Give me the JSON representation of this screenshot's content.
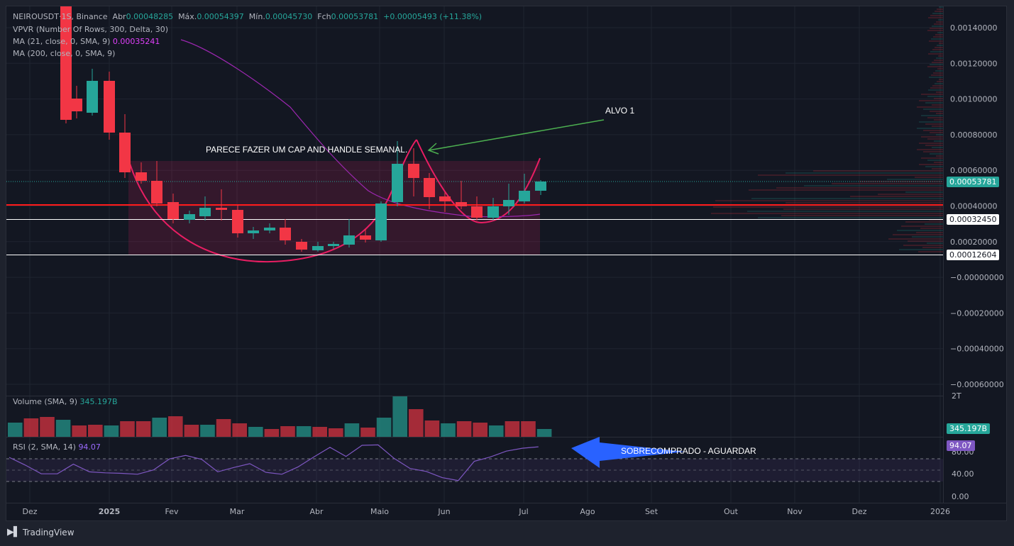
{
  "legend": {
    "symbol": "NEIROUSDT",
    "interval_suffix": "1S",
    "exchange": "Binance",
    "open_label": "Abr",
    "open": "0.00048285",
    "high_label": "Máx.",
    "high": "0.00054397",
    "low_label": "Mín.",
    "low": "0.00045730",
    "close_label": "Fch",
    "close": "0.00053781",
    "change": "+0.00005493 (+11.38%)",
    "vpvr": "VPVR (Number Of Rows, 300, Delta, 30)",
    "ma21_label": "MA (21, close, 0, SMA, 9)",
    "ma21_value": "0.00035241",
    "ma200_label": "MA (200, close, 0, SMA, 9)"
  },
  "price_axis": [
    "0.00140000",
    "0.00120000",
    "0.00100000",
    "0.00080000",
    "0.00060000",
    "0.00040000",
    "0.00020000",
    "−0.00000000",
    "−0.00020000",
    "−0.00040000",
    "−0.00060000"
  ],
  "price_tags": {
    "last": "0.00053781",
    "support_1": "0.00032450",
    "support_2": "0.00012604"
  },
  "time_axis": [
    "Dez",
    "2025",
    "Fev",
    "Mar",
    "Abr",
    "Maio",
    "Jun",
    "Jul",
    "Ago",
    "Set",
    "Out",
    "Nov",
    "Dez",
    "2026"
  ],
  "annotations": {
    "pattern": "PARECE FAZER UM CAP AND HANDLE SEMANAL.",
    "target": "ALVO 1",
    "rsi_note": "SOBRECOMPRADO - AGUARDAR"
  },
  "volume": {
    "label": "Volume (SMA, 9)",
    "value": "345.197B",
    "axis_top": "2T"
  },
  "rsi": {
    "label": "RSI (2, SMA, 14)",
    "value": "94.07",
    "axis": [
      "80.00",
      "40.00",
      "0.00"
    ],
    "levels": [
      70,
      30
    ]
  },
  "footer": {
    "brand": "TradingView"
  },
  "colors": {
    "up": "#26a69a",
    "down": "#f23645",
    "ma21": "#e040fb",
    "ma200": "#9c27b0",
    "support_line": "#ff1a1a",
    "rsi": "#7e57c2",
    "target_arrow": "#4caf50",
    "rsi_arrow": "#2962ff"
  }
}
